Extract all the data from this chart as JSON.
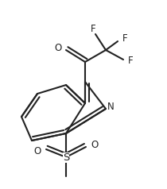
{
  "background": "#ffffff",
  "line_color": "#222222",
  "line_width": 1.5,
  "font_size": 8.5,
  "fig_width": 2.1,
  "fig_height": 2.38,
  "dpi": 100,
  "xlim": [
    0,
    210
  ],
  "ylim": [
    0,
    238
  ]
}
